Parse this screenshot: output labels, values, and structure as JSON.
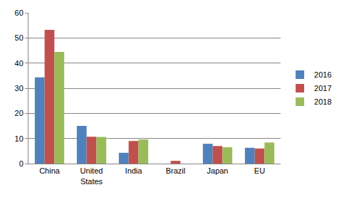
{
  "chart_data": {
    "type": "bar",
    "categories": [
      "China",
      "United States",
      "India",
      "Brazil",
      "Japan",
      "EU"
    ],
    "series": [
      {
        "name": "2016",
        "color": "#4f81bd",
        "values": [
          34.3,
          15.0,
          4.3,
          0,
          7.9,
          6.3
        ]
      },
      {
        "name": "2017",
        "color": "#c0504d",
        "values": [
          53.2,
          10.7,
          9.0,
          1.1,
          7.0,
          6.0
        ]
      },
      {
        "name": "2018",
        "color": "#9bbb59",
        "values": [
          44.4,
          10.6,
          9.6,
          0,
          6.5,
          8.4
        ]
      }
    ],
    "ylim": [
      0,
      60
    ],
    "yticks": [
      0,
      10,
      20,
      30,
      40,
      50,
      60
    ],
    "grid": true,
    "legend": "right"
  }
}
